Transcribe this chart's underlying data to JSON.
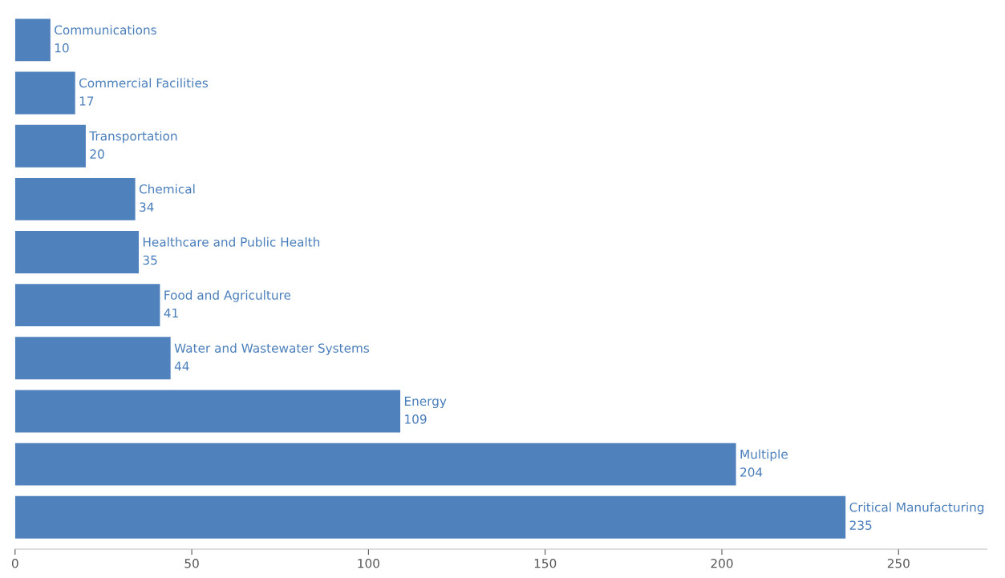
{
  "chart_data": {
    "type": "bar",
    "orientation": "horizontal",
    "categories": [
      "Communications",
      "Commercial Facilities",
      "Transportation",
      "Chemical",
      "Healthcare and Public Health",
      "Food and Agriculture",
      "Water and Wastewater Systems",
      "Energy",
      "Multiple",
      "Critical Manufacturing"
    ],
    "values": [
      10,
      17,
      20,
      34,
      35,
      41,
      44,
      109,
      204,
      235
    ],
    "color": "#4f81bd",
    "xlim": [
      0,
      275
    ],
    "xticks": [
      0,
      50,
      100,
      150,
      200,
      250
    ],
    "data_labels": true,
    "grid": false,
    "legend": false,
    "tick_labels": "x"
  }
}
